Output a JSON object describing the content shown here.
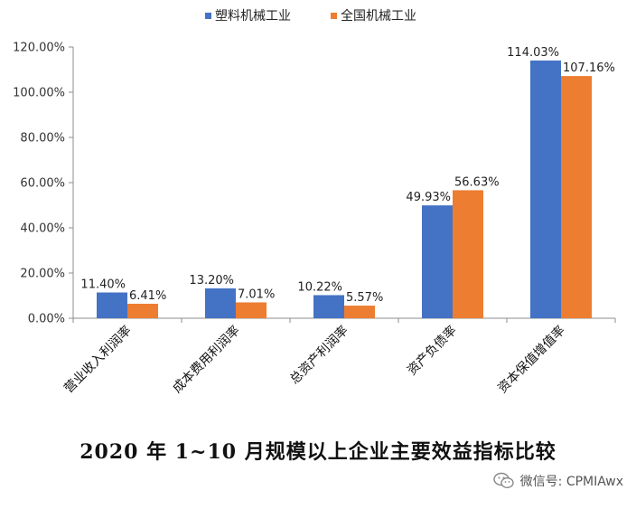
{
  "chart_data": {
    "type": "bar",
    "categories": [
      "营业收入利润率",
      "成本费用利润率",
      "总资产利润率",
      "资产负债率",
      "资本保值增值率"
    ],
    "series": [
      {
        "name": "塑料机械工业",
        "color": "#4472C4",
        "values": [
          11.4,
          13.2,
          10.22,
          49.93,
          114.03
        ],
        "labels": [
          "11.40%",
          "13.20%",
          "10.22%",
          "49.93%",
          "114.03%"
        ]
      },
      {
        "name": "全国机械工业",
        "color": "#ED7D31",
        "values": [
          6.41,
          7.01,
          5.57,
          56.63,
          107.16
        ],
        "labels": [
          "6.41%",
          "7.01%",
          "5.57%",
          "56.63%",
          "107.16%"
        ]
      }
    ],
    "ylim": [
      0,
      120
    ],
    "yticks": [
      "0.00%",
      "20.00%",
      "40.00%",
      "60.00%",
      "80.00%",
      "100.00%",
      "120.00%"
    ],
    "legend_position": "top",
    "grid": false
  },
  "caption": "2020 年 1~10 月规模以上企业主要效益指标比较",
  "watermark": {
    "icon": "wechat-icon",
    "text": "微信号: CPMIAwx"
  }
}
